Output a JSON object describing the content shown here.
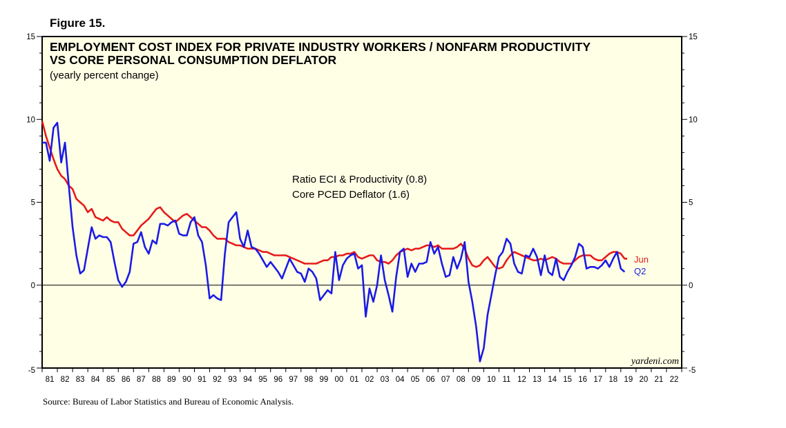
{
  "figure_label": "Figure 15.",
  "source": "Source: Bureau of Labor Statistics and Bureau of Economic Analysis.",
  "chart_data": {
    "type": "line",
    "title_line1": "EMPLOYMENT COST INDEX FOR PRIVATE INDUSTRY WORKERS / NONFARM PRODUCTIVITY",
    "title_line2": "VS CORE PERSONAL CONSUMPTION DEFLATOR",
    "subtitle": "(yearly percent change)",
    "credit": "yardeni.com",
    "ylim": [
      -5,
      15
    ],
    "yticks": [
      -5,
      0,
      5,
      10,
      15
    ],
    "xlim": [
      1981,
      2023
    ],
    "xtick_labels": [
      "81",
      "82",
      "83",
      "84",
      "85",
      "86",
      "87",
      "88",
      "89",
      "90",
      "91",
      "92",
      "93",
      "94",
      "95",
      "96",
      "97",
      "98",
      "99",
      "00",
      "01",
      "02",
      "03",
      "04",
      "05",
      "06",
      "07",
      "08",
      "09",
      "10",
      "11",
      "12",
      "13",
      "14",
      "15",
      "16",
      "17",
      "18",
      "19",
      "20",
      "21",
      "22"
    ],
    "legend": [
      "Ratio ECI & Productivity (0.8)",
      "Core PCED Deflator (1.6)"
    ],
    "colors": {
      "ratio": "#1a1ae6",
      "pced": "#e61a1a",
      "plot_bg": "#ffffe6"
    },
    "series": [
      {
        "name": "Ratio ECI & Productivity",
        "end_label": "Q2",
        "x": [
          1981.0,
          1981.25,
          1981.5,
          1981.75,
          1982.0,
          1982.25,
          1982.5,
          1982.75,
          1983.0,
          1983.25,
          1983.5,
          1983.75,
          1984.0,
          1984.25,
          1984.5,
          1984.75,
          1985.0,
          1985.25,
          1985.5,
          1985.75,
          1986.0,
          1986.25,
          1986.5,
          1986.75,
          1987.0,
          1987.25,
          1987.5,
          1987.75,
          1988.0,
          1988.25,
          1988.5,
          1988.75,
          1989.0,
          1989.25,
          1989.5,
          1989.75,
          1990.0,
          1990.25,
          1990.5,
          1990.75,
          1991.0,
          1991.25,
          1991.5,
          1991.75,
          1992.0,
          1992.25,
          1992.5,
          1992.75,
          1993.0,
          1993.25,
          1993.5,
          1993.75,
          1994.0,
          1994.25,
          1994.5,
          1994.75,
          1995.0,
          1995.25,
          1995.5,
          1995.75,
          1996.0,
          1996.25,
          1996.5,
          1996.75,
          1997.0,
          1997.25,
          1997.5,
          1997.75,
          1998.0,
          1998.25,
          1998.5,
          1998.75,
          1999.0,
          1999.25,
          1999.5,
          1999.75,
          2000.0,
          2000.25,
          2000.5,
          2000.75,
          2001.0,
          2001.25,
          2001.5,
          2001.75,
          2002.0,
          2002.25,
          2002.5,
          2002.75,
          2003.0,
          2003.25,
          2003.5,
          2003.75,
          2004.0,
          2004.25,
          2004.5,
          2004.75,
          2005.0,
          2005.25,
          2005.5,
          2005.75,
          2006.0,
          2006.25,
          2006.5,
          2006.75,
          2007.0,
          2007.25,
          2007.5,
          2007.75,
          2008.0,
          2008.25,
          2008.5,
          2008.75,
          2009.0,
          2009.25,
          2009.5,
          2009.75,
          2010.0,
          2010.25,
          2010.5,
          2010.75,
          2011.0,
          2011.25,
          2011.5,
          2011.75,
          2012.0,
          2012.25,
          2012.5,
          2012.75,
          2013.0,
          2013.25,
          2013.5,
          2013.75,
          2014.0,
          2014.25,
          2014.5,
          2014.75,
          2015.0,
          2015.25,
          2015.5,
          2015.75,
          2016.0,
          2016.25,
          2016.5,
          2016.75,
          2017.0,
          2017.25,
          2017.5,
          2017.75,
          2018.0,
          2018.25,
          2018.5,
          2018.75,
          2019.0,
          2019.25
        ],
        "values": [
          8.6,
          8.6,
          7.5,
          9.5,
          9.8,
          7.4,
          8.6,
          6.0,
          3.5,
          1.8,
          0.7,
          0.9,
          2.2,
          3.5,
          2.8,
          3.0,
          2.9,
          2.9,
          2.6,
          1.4,
          0.3,
          -0.1,
          0.2,
          0.8,
          2.5,
          2.6,
          3.2,
          2.3,
          1.9,
          2.7,
          2.5,
          3.7,
          3.7,
          3.6,
          3.8,
          3.9,
          3.1,
          3.0,
          3.0,
          3.8,
          4.1,
          3.0,
          2.6,
          1.2,
          -0.8,
          -0.6,
          -0.8,
          -0.9,
          1.9,
          3.8,
          4.1,
          4.4,
          2.8,
          2.3,
          3.3,
          2.3,
          2.2,
          1.9,
          1.5,
          1.1,
          1.4,
          1.1,
          0.8,
          0.4,
          1.0,
          1.6,
          1.2,
          0.8,
          0.7,
          0.2,
          1.0,
          0.8,
          0.4,
          -0.9,
          -0.6,
          -0.3,
          -0.5,
          2.0,
          0.3,
          1.2,
          1.6,
          1.8,
          1.9,
          1.0,
          1.2,
          -1.9,
          -0.2,
          -1.0,
          0.0,
          1.8,
          0.3,
          -0.6,
          -1.6,
          0.5,
          2.0,
          2.2,
          0.5,
          1.3,
          0.8,
          1.3,
          1.3,
          1.4,
          2.6,
          1.9,
          2.3,
          1.3,
          0.5,
          0.6,
          1.7,
          1.0,
          1.6,
          2.6,
          0.2,
          -1.0,
          -2.5,
          -4.6,
          -3.8,
          -1.8,
          -0.6,
          0.6,
          1.7,
          2.0,
          2.8,
          2.5,
          1.3,
          0.8,
          0.7,
          1.8,
          1.7,
          2.2,
          1.7,
          0.6,
          1.8,
          0.8,
          0.6,
          1.6,
          0.5,
          0.3,
          0.8,
          1.2,
          1.7,
          2.5,
          2.3,
          1.0,
          1.1,
          1.1,
          1.0,
          1.2,
          1.5,
          1.1,
          1.6,
          2.0,
          1.0,
          0.8
        ]
      },
      {
        "name": "Core PCED Deflator",
        "end_label": "Jun",
        "x": [
          1981.0,
          1981.25,
          1981.5,
          1981.75,
          1982.0,
          1982.25,
          1982.5,
          1982.75,
          1983.0,
          1983.25,
          1983.5,
          1983.75,
          1984.0,
          1984.25,
          1984.5,
          1984.75,
          1985.0,
          1985.25,
          1985.5,
          1985.75,
          1986.0,
          1986.25,
          1986.5,
          1986.75,
          1987.0,
          1987.25,
          1987.5,
          1987.75,
          1988.0,
          1988.25,
          1988.5,
          1988.75,
          1989.0,
          1989.25,
          1989.5,
          1989.75,
          1990.0,
          1990.25,
          1990.5,
          1990.75,
          1991.0,
          1991.25,
          1991.5,
          1991.75,
          1992.0,
          1992.25,
          1992.5,
          1992.75,
          1993.0,
          1993.25,
          1993.5,
          1993.75,
          1994.0,
          1994.25,
          1994.5,
          1994.75,
          1995.0,
          1995.25,
          1995.5,
          1995.75,
          1996.0,
          1996.25,
          1996.5,
          1996.75,
          1997.0,
          1997.25,
          1997.5,
          1997.75,
          1998.0,
          1998.25,
          1998.5,
          1998.75,
          1999.0,
          1999.25,
          1999.5,
          1999.75,
          2000.0,
          2000.25,
          2000.5,
          2000.75,
          2001.0,
          2001.25,
          2001.5,
          2001.75,
          2002.0,
          2002.25,
          2002.5,
          2002.75,
          2003.0,
          2003.25,
          2003.5,
          2003.75,
          2004.0,
          2004.25,
          2004.5,
          2004.75,
          2005.0,
          2005.25,
          2005.5,
          2005.75,
          2006.0,
          2006.25,
          2006.5,
          2006.75,
          2007.0,
          2007.25,
          2007.5,
          2007.75,
          2008.0,
          2008.25,
          2008.5,
          2008.75,
          2009.0,
          2009.25,
          2009.5,
          2009.75,
          2010.0,
          2010.25,
          2010.5,
          2010.75,
          2011.0,
          2011.25,
          2011.5,
          2011.75,
          2012.0,
          2012.25,
          2012.5,
          2012.75,
          2013.0,
          2013.25,
          2013.5,
          2013.75,
          2014.0,
          2014.25,
          2014.5,
          2014.75,
          2015.0,
          2015.25,
          2015.5,
          2015.75,
          2016.0,
          2016.25,
          2016.5,
          2016.75,
          2017.0,
          2017.25,
          2017.5,
          2017.75,
          2018.0,
          2018.25,
          2018.5,
          2018.75,
          2019.0,
          2019.25,
          2019.42
        ],
        "values": [
          9.9,
          9.0,
          8.3,
          7.6,
          7.0,
          6.6,
          6.4,
          6.0,
          5.8,
          5.2,
          5.0,
          4.8,
          4.4,
          4.6,
          4.1,
          4.0,
          3.9,
          4.1,
          3.9,
          3.8,
          3.8,
          3.4,
          3.2,
          3.0,
          3.0,
          3.3,
          3.6,
          3.8,
          4.0,
          4.3,
          4.6,
          4.7,
          4.4,
          4.2,
          4.0,
          3.8,
          4.0,
          4.2,
          4.3,
          4.1,
          3.9,
          3.7,
          3.5,
          3.5,
          3.3,
          3.0,
          2.8,
          2.8,
          2.8,
          2.6,
          2.5,
          2.4,
          2.4,
          2.3,
          2.2,
          2.2,
          2.2,
          2.1,
          2.0,
          2.0,
          1.9,
          1.8,
          1.8,
          1.8,
          1.8,
          1.7,
          1.6,
          1.5,
          1.4,
          1.3,
          1.3,
          1.3,
          1.3,
          1.4,
          1.5,
          1.5,
          1.7,
          1.7,
          1.8,
          1.8,
          1.9,
          1.9,
          2.0,
          1.7,
          1.6,
          1.7,
          1.8,
          1.8,
          1.5,
          1.4,
          1.4,
          1.3,
          1.5,
          1.8,
          2.0,
          2.1,
          2.2,
          2.1,
          2.2,
          2.2,
          2.3,
          2.4,
          2.4,
          2.3,
          2.4,
          2.2,
          2.2,
          2.2,
          2.2,
          2.3,
          2.5,
          2.2,
          1.6,
          1.2,
          1.1,
          1.2,
          1.5,
          1.7,
          1.4,
          1.1,
          1.0,
          1.1,
          1.5,
          1.8,
          2.0,
          1.9,
          1.8,
          1.7,
          1.6,
          1.5,
          1.5,
          1.6,
          1.5,
          1.6,
          1.7,
          1.6,
          1.4,
          1.3,
          1.3,
          1.3,
          1.5,
          1.7,
          1.8,
          1.8,
          1.8,
          1.6,
          1.5,
          1.5,
          1.7,
          1.9,
          2.0,
          2.0,
          1.9,
          1.6,
          1.6
        ]
      }
    ]
  }
}
